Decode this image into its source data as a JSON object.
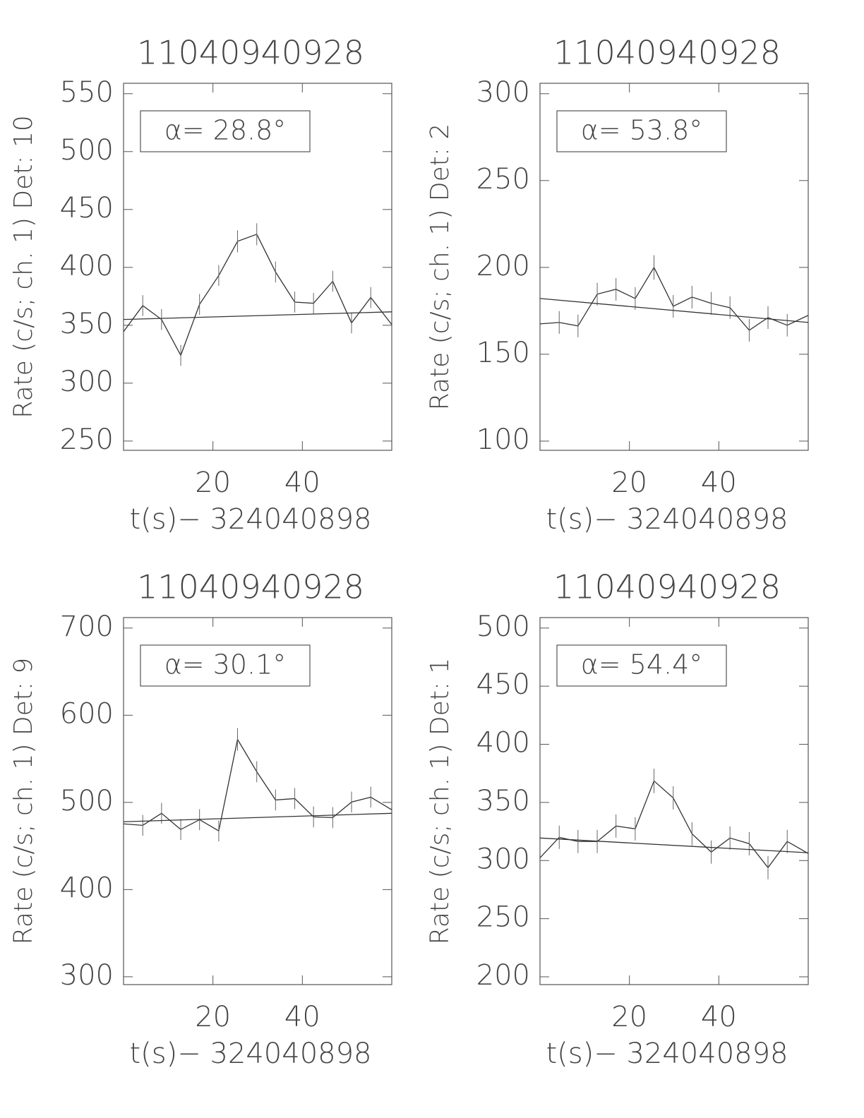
{
  "chart_data": [
    {
      "type": "line",
      "title": "11040940928",
      "annotation": "α= 28.8°",
      "ylabel": "Rate (c/s; ch. 1) Det: 10",
      "xlabel": "t(s)− 324040898",
      "xlim": [
        0,
        60
      ],
      "xticks": [
        20,
        40
      ],
      "ylim": [
        242,
        559
      ],
      "yticks": [
        250,
        300,
        350,
        400,
        450,
        500,
        550
      ],
      "color": "#333333",
      "series": [
        {
          "x": [
            0,
            4.3,
            8.5,
            12.8,
            17,
            21.3,
            25.5,
            29.8,
            34,
            38.3,
            42.5,
            46.8,
            51,
            55.3,
            60
          ],
          "values": [
            344.5,
            367,
            355,
            324,
            368,
            393,
            422.5,
            428.6,
            396,
            370,
            369,
            388,
            352,
            374,
            350.6
          ],
          "errors": [
            null,
            9,
            9,
            9,
            9,
            9,
            9.5,
            9.5,
            9,
            9,
            9,
            9,
            9,
            9,
            null
          ]
        },
        {
          "x": [
            0,
            60
          ],
          "values": [
            355,
            361.6
          ]
        }
      ]
    },
    {
      "type": "line",
      "title": "11040940928",
      "annotation": "α= 53.8°",
      "ylabel": "Rate (c/s; ch. 1) Det: 2",
      "xlabel": "t(s)− 324040898",
      "xlim": [
        0,
        60
      ],
      "xticks": [
        20,
        40
      ],
      "ylim": [
        94.7,
        306
      ],
      "yticks": [
        100,
        150,
        200,
        250,
        300
      ],
      "color": "#333333",
      "series": [
        {
          "x": [
            0,
            4.3,
            8.5,
            12.8,
            17,
            21.3,
            25.5,
            29.8,
            34,
            38.3,
            42.5,
            46.8,
            51,
            55.3,
            60
          ],
          "values": [
            167.5,
            168.3,
            166.3,
            184.6,
            187.4,
            182.1,
            200,
            177.6,
            182.9,
            179.3,
            176.8,
            163.8,
            171.1,
            166.7,
            172.4
          ],
          "errors": [
            null,
            6.5,
            6.5,
            6.5,
            6.5,
            6.5,
            7,
            6.5,
            6.5,
            6.5,
            6.5,
            6.5,
            6.5,
            6.5,
            null
          ]
        },
        {
          "x": [
            0,
            60
          ],
          "values": [
            182.1,
            168.3
          ]
        }
      ]
    },
    {
      "type": "line",
      "title": "11040940928",
      "annotation": "α= 30.1°",
      "ylabel": "Rate (c/s; ch. 1) Det: 9",
      "xlabel": "t(s)− 324040898",
      "xlim": [
        0,
        60
      ],
      "xticks": [
        20,
        40
      ],
      "ylim": [
        291,
        712
      ],
      "yticks": [
        300,
        400,
        500,
        600,
        700
      ],
      "color": "#333333",
      "series": [
        {
          "x": [
            0,
            4.3,
            8.5,
            12.8,
            17,
            21.3,
            25.5,
            29.8,
            34,
            38.3,
            42.5,
            46.8,
            51,
            55.3,
            60
          ],
          "values": [
            475.4,
            473.7,
            487.5,
            468.9,
            480.2,
            467.3,
            572.3,
            535.2,
            502.8,
            504.4,
            483.4,
            482.6,
            500.4,
            506,
            491.5
          ],
          "errors": [
            null,
            12,
            12,
            12,
            12,
            12,
            13,
            12,
            12,
            12,
            12,
            12,
            12,
            12,
            null
          ]
        },
        {
          "x": [
            0,
            60
          ],
          "values": [
            477.8,
            487.5
          ]
        }
      ]
    },
    {
      "type": "line",
      "title": "11040940928",
      "annotation": "α= 54.4°",
      "ylabel": "Rate (c/s; ch. 1) Det: 1",
      "xlabel": "t(s)− 324040898",
      "xlim": [
        0,
        60
      ],
      "xticks": [
        20,
        40
      ],
      "ylim": [
        193.3,
        509
      ],
      "yticks": [
        200,
        250,
        300,
        350,
        400,
        450,
        500
      ],
      "color": "#333333",
      "series": [
        {
          "x": [
            0,
            4.3,
            8.5,
            12.8,
            17,
            21.3,
            25.5,
            29.8,
            34,
            38.3,
            42.5,
            46.8,
            51,
            55.3,
            60
          ],
          "values": [
            302.4,
            320,
            316.4,
            316.4,
            329.7,
            327.3,
            368.5,
            353.9,
            323,
            307.3,
            319.4,
            314.5,
            293.9,
            316.4,
            306.1
          ],
          "errors": [
            null,
            10,
            10,
            10,
            10,
            10,
            10.5,
            10,
            10,
            10,
            10,
            10,
            10,
            10,
            null
          ]
        },
        {
          "x": [
            0,
            60
          ],
          "values": [
            319.4,
            306.7
          ]
        }
      ]
    }
  ]
}
